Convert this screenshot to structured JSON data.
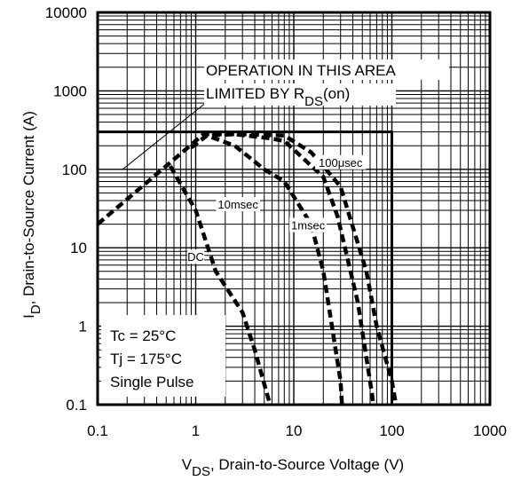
{
  "chart_data": {
    "type": "line",
    "x_scale": "log",
    "y_scale": "log",
    "xlim": [
      0.1,
      1000
    ],
    "ylim": [
      0.1,
      10000
    ],
    "x_ticks": [
      "0.1",
      "1",
      "10",
      "100",
      "1000"
    ],
    "y_ticks": [
      "0.1",
      "1",
      "10",
      "100",
      "1000",
      "10000"
    ],
    "xlabel": {
      "main": "V",
      "sub": "DS",
      "rest": ", Drain-to-Source Voltage (V)"
    },
    "ylabel": {
      "main": "I",
      "sub": "D",
      "rest": ",  Drain-to-Source Current (A)"
    },
    "grid": true,
    "annotation": {
      "line1": "OPERATION IN THIS AREA",
      "line2_main": "LIMITED BY R",
      "line2_sub": "DS",
      "line2_rest": "(on)"
    },
    "conditions": [
      "Tc = 25°C",
      "Tj = 175°C",
      "Single Pulse"
    ],
    "limit_box": {
      "x_max": 100,
      "y_max": 300
    },
    "series": [
      {
        "name": "100μsec",
        "x": [
          0.1,
          0.5,
          1.2,
          3,
          8,
          15,
          20,
          30,
          55,
          70,
          100,
          110
        ],
        "y": [
          20,
          110,
          280,
          280,
          270,
          165,
          110,
          60,
          5,
          1,
          0.2,
          0.1
        ]
      },
      {
        "name": "1msec",
        "x": [
          0.9,
          1.3,
          2.5,
          5.5,
          8,
          20,
          28,
          45,
          62,
          65
        ],
        "y": [
          190,
          270,
          280,
          250,
          230,
          80,
          25,
          2,
          0.15,
          0.1
        ]
      },
      {
        "name": "10msec",
        "x": [
          0.9,
          1.3,
          2.5,
          5,
          8,
          15,
          20,
          30,
          31
        ],
        "y": [
          190,
          270,
          200,
          100,
          70,
          20,
          5,
          0.2,
          0.1
        ]
      },
      {
        "name": "DC",
        "x": [
          0.55,
          1.0,
          1.6,
          3,
          4,
          5.5,
          5.8
        ],
        "y": [
          110,
          30,
          5,
          1.5,
          0.5,
          0.12,
          0.1
        ]
      }
    ],
    "curve_labels": {
      "100μsec": {
        "x": 30,
        "y": 120
      },
      "1msec": {
        "x": 14,
        "y": 19
      },
      "10msec": {
        "x": 2.7,
        "y": 35
      },
      "DC": {
        "x": 1.0,
        "y": 7.5
      }
    },
    "annotation_pointer": {
      "x1": 0.18,
      "y1": 100,
      "x2": 1.8,
      "y2": 1000
    }
  }
}
